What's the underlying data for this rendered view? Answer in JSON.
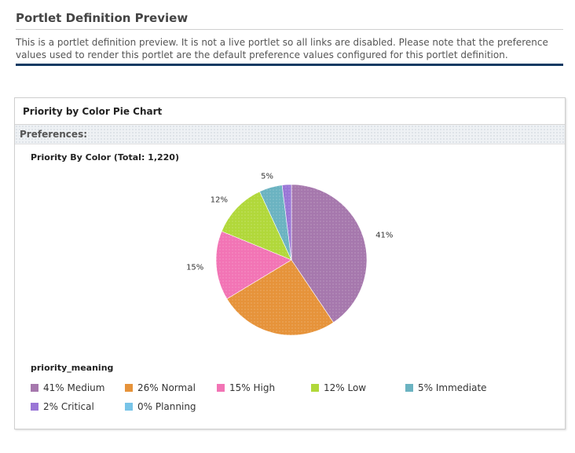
{
  "header": {
    "title": "Portlet Definition Preview",
    "description": "This is a portlet definition preview. It is not a live portlet so all links are disabled. Please note that the preference values used to render this portlet are the default preference values configured for this portlet definition."
  },
  "portlet": {
    "title": "Priority by Color Pie Chart",
    "preferences_label": "Preferences:"
  },
  "chart_data": {
    "type": "pie",
    "title": "Priority By Color (Total: 1,220)",
    "legend_title": "priority_meaning",
    "legend_position": "bottom",
    "slices": [
      {
        "name": "Medium",
        "label": "41%",
        "legend": "41% Medium",
        "value": 41,
        "color": "#a678ad"
      },
      {
        "name": "Normal",
        "label": "26%",
        "legend": "26% Normal",
        "value": 26,
        "color": "#e6933a"
      },
      {
        "name": "High",
        "label": "15%",
        "legend": "15% High",
        "value": 15,
        "color": "#f274b5"
      },
      {
        "name": "Low",
        "label": "12%",
        "legend": "12% Low",
        "value": 12,
        "color": "#b1d83a"
      },
      {
        "name": "Immediate",
        "label": "5%",
        "legend": "5% Immediate",
        "value": 5,
        "color": "#6bb3c1"
      },
      {
        "name": "Critical",
        "label": "",
        "legend": "2% Critical",
        "value": 2,
        "color": "#9a76d6"
      },
      {
        "name": "Planning",
        "label": "",
        "legend": "0% Planning",
        "value": 0,
        "color": "#78c4e8"
      }
    ]
  }
}
